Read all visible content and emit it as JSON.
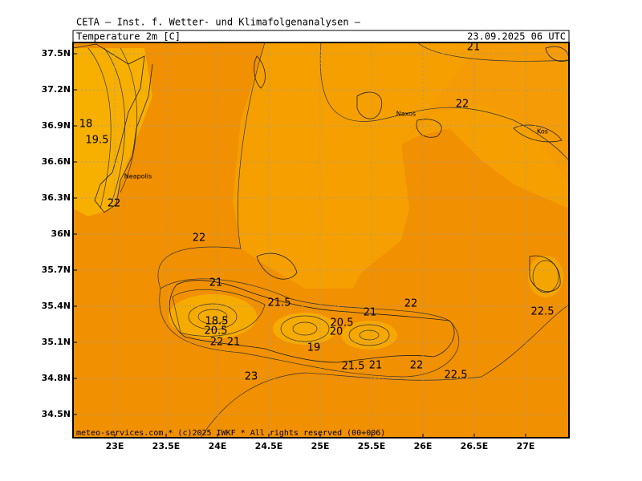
{
  "header": {
    "title": "CETA — Inst. f. Wetter- und Klimafolgenanalysen —",
    "variable": "Temperature 2m [C]",
    "valid_time": "23.09.2025 06 UTC"
  },
  "map": {
    "lon_ticks": [
      {
        "value": 23,
        "label": "23E"
      },
      {
        "value": 23.5,
        "label": "23.5E"
      },
      {
        "value": 24,
        "label": "24E"
      },
      {
        "value": 24.5,
        "label": "24.5E"
      },
      {
        "value": 25,
        "label": "25E"
      },
      {
        "value": 25.5,
        "label": "25.5E"
      },
      {
        "value": 26,
        "label": "26E"
      },
      {
        "value": 26.5,
        "label": "26.5E"
      },
      {
        "value": 27,
        "label": "27E"
      }
    ],
    "lat_ticks": [
      {
        "value": 37.5,
        "label": "37.5N"
      },
      {
        "value": 37.2,
        "label": "37.2N"
      },
      {
        "value": 36.9,
        "label": "36.9N"
      },
      {
        "value": 36.6,
        "label": "36.6N"
      },
      {
        "value": 36.3,
        "label": "36.3N"
      },
      {
        "value": 36,
        "label": "36N"
      },
      {
        "value": 35.7,
        "label": "35.7N"
      },
      {
        "value": 35.4,
        "label": "35.4N"
      },
      {
        "value": 35.1,
        "label": "35.1N"
      },
      {
        "value": 34.8,
        "label": "34.8N"
      },
      {
        "value": 34.5,
        "label": "34.5N"
      }
    ],
    "places": [
      "Naxos",
      "Kos",
      "Neapolis"
    ],
    "contour_labels": [
      18,
      19.5,
      22,
      22,
      21,
      21.5,
      18.5,
      20.5,
      22,
      21,
      23,
      19,
      20.5,
      20,
      21,
      22,
      21.5,
      21,
      22,
      22.5,
      22.5,
      21,
      22
    ]
  },
  "footer": "meteo-services.com * (c)2025 IWKF * All rights reserved (00+006)"
}
